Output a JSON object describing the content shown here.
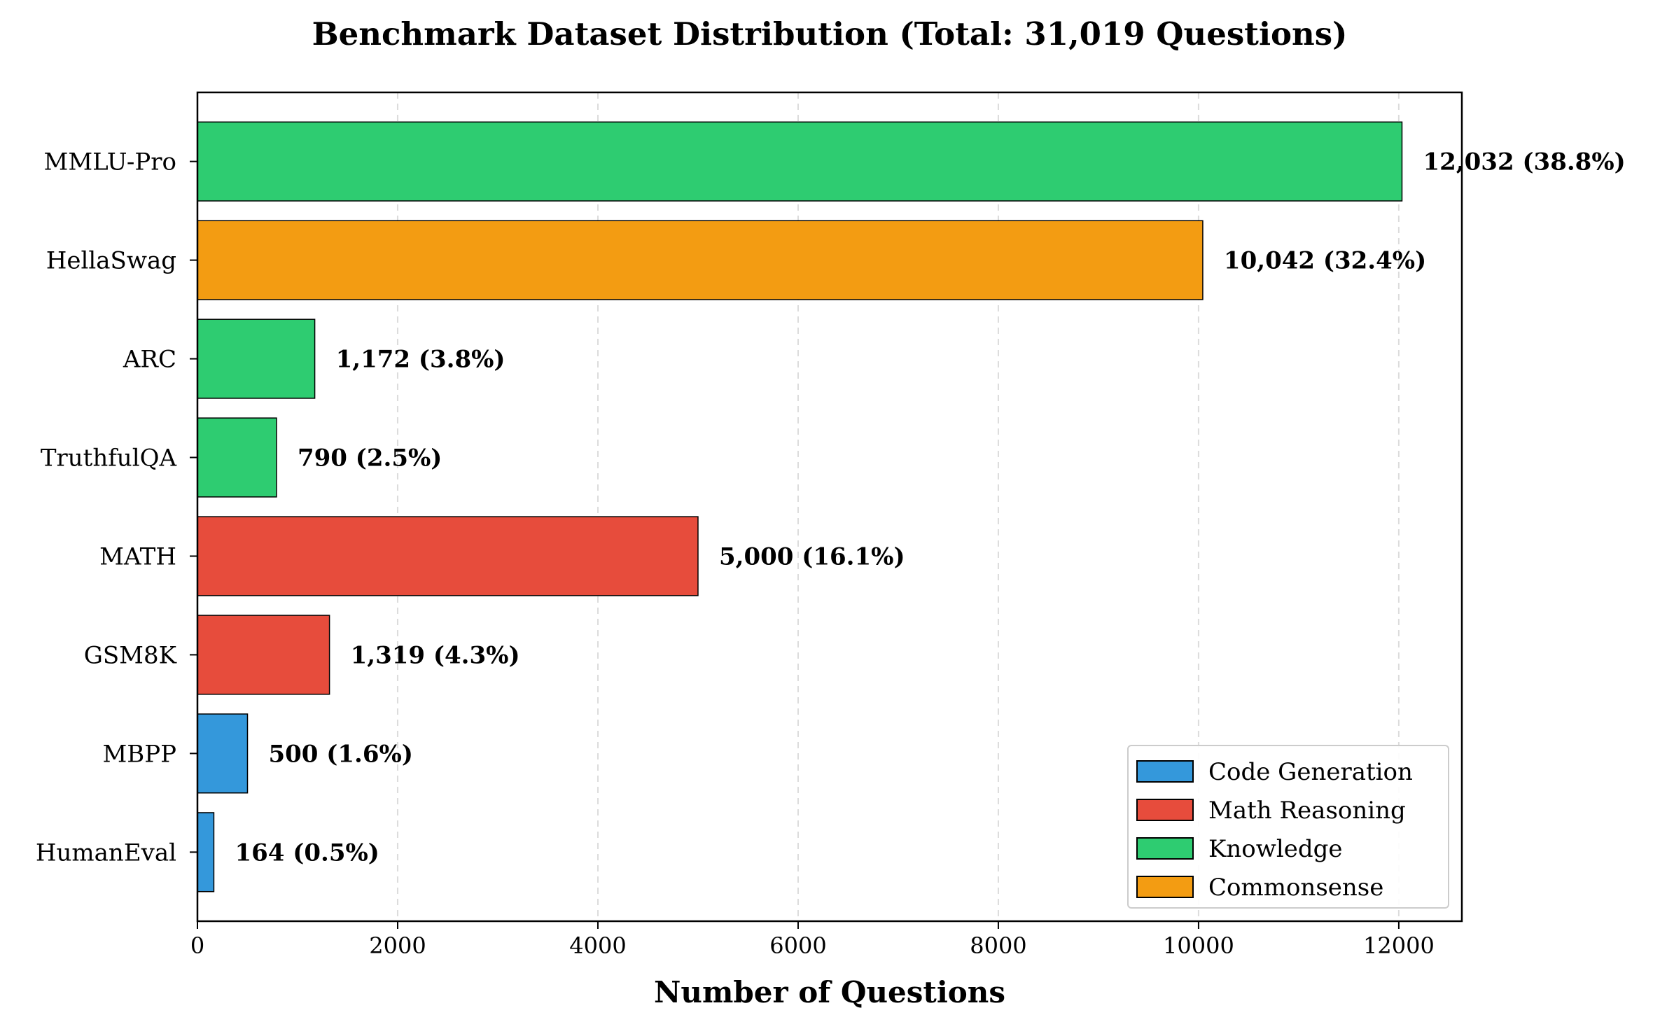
{
  "chart_data": {
    "type": "bar",
    "orientation": "horizontal",
    "title": "Benchmark Dataset Distribution (Total: 31,019 Questions)",
    "xlabel": "Number of Questions",
    "ylabel": "",
    "xlim": [
      0,
      12630
    ],
    "xticks": [
      0,
      2000,
      4000,
      6000,
      8000,
      10000,
      12000
    ],
    "xtick_labels": [
      "0",
      "2000",
      "4000",
      "6000",
      "8000",
      "10000",
      "12000"
    ],
    "grid": "x-dashed",
    "legend_position": "lower-right",
    "categories": [
      "MMLU-Pro",
      "HellaSwag",
      "ARC",
      "TruthfulQA",
      "MATH",
      "GSM8K",
      "MBPP",
      "HumanEval"
    ],
    "values": [
      12032,
      10042,
      1172,
      790,
      5000,
      1319,
      500,
      164
    ],
    "data_labels": [
      "12,032 (38.8%)",
      "10,042 (32.4%)",
      "1,172 (3.8%)",
      "790 (2.5%)",
      "5,000 (16.1%)",
      "1,319 (4.3%)",
      "500 (1.6%)",
      "164 (0.5%)"
    ],
    "groups": [
      "Knowledge",
      "Commonsense",
      "Knowledge",
      "Knowledge",
      "Math Reasoning",
      "Math Reasoning",
      "Code Generation",
      "Code Generation"
    ],
    "legend": [
      {
        "label": "Code Generation",
        "color": "#3498db"
      },
      {
        "label": "Math Reasoning",
        "color": "#e74c3c"
      },
      {
        "label": "Knowledge",
        "color": "#2ecc71"
      },
      {
        "label": "Commonsense",
        "color": "#f39c12"
      }
    ]
  }
}
